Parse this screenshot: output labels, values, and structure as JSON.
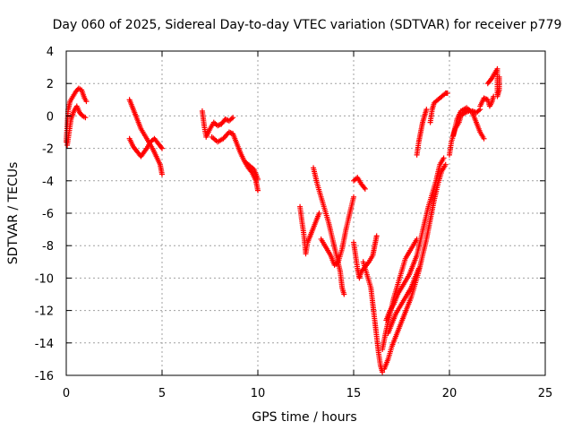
{
  "chart_data": {
    "type": "scatter",
    "title": "Day 060 of 2025, Sidereal Day-to-day VTEC variation (SDTVAR) for receiver p779",
    "xlabel": "GPS time / hours",
    "ylabel": "SDTVAR / TECUs",
    "xlim": [
      0,
      25
    ],
    "ylim": [
      -16,
      4
    ],
    "xticks": [
      0,
      5,
      10,
      15,
      20,
      25
    ],
    "yticks": [
      4,
      2,
      0,
      -2,
      -4,
      -6,
      -8,
      -10,
      -12,
      -14,
      -16
    ],
    "grid": true,
    "legend": "none",
    "marker": "plus",
    "color": "#ff0000",
    "series": [
      {
        "segments": [
          [
            [
              0.0,
              -1.6
            ],
            [
              0.1,
              0.4
            ],
            [
              0.2,
              0.9
            ],
            [
              0.35,
              1.2
            ],
            [
              0.5,
              1.5
            ],
            [
              0.65,
              1.7
            ],
            [
              0.8,
              1.6
            ],
            [
              0.95,
              1.1
            ],
            [
              1.05,
              0.9
            ]
          ],
          [
            [
              0.05,
              -1.8
            ],
            [
              0.15,
              -1.0
            ],
            [
              0.25,
              -0.2
            ],
            [
              0.4,
              0.3
            ],
            [
              0.55,
              0.6
            ],
            [
              0.7,
              0.2
            ],
            [
              0.85,
              0.0
            ],
            [
              1.0,
              -0.1
            ]
          ],
          [
            [
              3.3,
              1.0
            ],
            [
              3.5,
              0.4
            ],
            [
              3.7,
              -0.2
            ],
            [
              3.9,
              -0.8
            ],
            [
              4.1,
              -1.2
            ],
            [
              4.3,
              -1.6
            ],
            [
              4.5,
              -2.0
            ],
            [
              4.7,
              -2.5
            ],
            [
              4.9,
              -3.0
            ],
            [
              5.0,
              -3.6
            ]
          ],
          [
            [
              3.3,
              -1.4
            ],
            [
              3.5,
              -1.9
            ],
            [
              3.7,
              -2.2
            ],
            [
              3.9,
              -2.5
            ],
            [
              4.2,
              -2.0
            ],
            [
              4.4,
              -1.6
            ],
            [
              4.6,
              -1.4
            ],
            [
              4.8,
              -1.7
            ],
            [
              5.0,
              -2.0
            ]
          ],
          [
            [
              7.1,
              0.3
            ],
            [
              7.2,
              -0.6
            ],
            [
              7.3,
              -1.3
            ],
            [
              7.5,
              -0.8
            ],
            [
              7.7,
              -0.4
            ],
            [
              7.9,
              -0.6
            ],
            [
              8.1,
              -0.5
            ],
            [
              8.3,
              -0.2
            ],
            [
              8.5,
              -0.3
            ],
            [
              8.7,
              -0.1
            ]
          ],
          [
            [
              7.6,
              -1.3
            ],
            [
              7.9,
              -1.6
            ],
            [
              8.2,
              -1.4
            ],
            [
              8.5,
              -1.0
            ],
            [
              8.7,
              -1.1
            ],
            [
              8.9,
              -1.7
            ],
            [
              9.1,
              -2.3
            ],
            [
              9.3,
              -2.8
            ],
            [
              9.5,
              -3.2
            ],
            [
              9.7,
              -3.5
            ],
            [
              9.9,
              -4.0
            ],
            [
              10.0,
              -4.6
            ]
          ],
          [
            [
              9.4,
              -2.9
            ],
            [
              9.6,
              -3.1
            ],
            [
              9.8,
              -3.3
            ],
            [
              10.0,
              -3.9
            ]
          ],
          [
            [
              12.2,
              -5.6
            ],
            [
              12.3,
              -6.5
            ],
            [
              12.4,
              -7.3
            ],
            [
              12.5,
              -8.5
            ],
            [
              12.6,
              -7.8
            ],
            [
              12.8,
              -7.2
            ],
            [
              13.0,
              -6.6
            ],
            [
              13.2,
              -6.0
            ]
          ],
          [
            [
              12.9,
              -3.2
            ],
            [
              13.1,
              -4.2
            ],
            [
              13.3,
              -5.0
            ],
            [
              13.5,
              -5.8
            ],
            [
              13.7,
              -6.6
            ],
            [
              13.9,
              -7.6
            ],
            [
              14.1,
              -8.6
            ],
            [
              14.3,
              -9.6
            ],
            [
              14.4,
              -10.6
            ],
            [
              14.5,
              -11.0
            ]
          ],
          [
            [
              13.3,
              -7.6
            ],
            [
              13.5,
              -8.0
            ],
            [
              13.8,
              -8.6
            ],
            [
              14.0,
              -9.2
            ],
            [
              14.2,
              -9.0
            ],
            [
              14.4,
              -8.2
            ],
            [
              14.6,
              -7.0
            ],
            [
              14.8,
              -6.0
            ],
            [
              15.0,
              -5.0
            ]
          ],
          [
            [
              15.0,
              -4.0
            ],
            [
              15.2,
              -3.8
            ],
            [
              15.4,
              -4.2
            ],
            [
              15.6,
              -4.5
            ]
          ],
          [
            [
              15.0,
              -7.8
            ],
            [
              15.1,
              -8.6
            ],
            [
              15.2,
              -9.4
            ],
            [
              15.3,
              -10.0
            ],
            [
              15.4,
              -9.6
            ],
            [
              15.6,
              -9.3
            ],
            [
              15.8,
              -9.0
            ],
            [
              16.0,
              -8.6
            ],
            [
              16.1,
              -8.0
            ],
            [
              16.2,
              -7.4
            ]
          ],
          [
            [
              15.5,
              -9.0
            ],
            [
              15.7,
              -9.8
            ],
            [
              15.9,
              -10.6
            ],
            [
              16.0,
              -11.6
            ],
            [
              16.1,
              -12.6
            ],
            [
              16.2,
              -13.6
            ],
            [
              16.3,
              -14.6
            ],
            [
              16.4,
              -15.4
            ],
            [
              16.5,
              -15.8
            ]
          ],
          [
            [
              16.5,
              -14.4
            ],
            [
              16.7,
              -13.2
            ],
            [
              16.9,
              -12.2
            ],
            [
              17.1,
              -11.2
            ],
            [
              17.3,
              -10.4
            ],
            [
              17.5,
              -9.6
            ],
            [
              17.7,
              -8.8
            ],
            [
              17.9,
              -8.4
            ],
            [
              18.1,
              -8.0
            ],
            [
              18.3,
              -7.6
            ]
          ],
          [
            [
              16.6,
              -15.6
            ],
            [
              16.8,
              -15.0
            ],
            [
              17.0,
              -14.2
            ],
            [
              17.2,
              -13.6
            ],
            [
              17.4,
              -13.0
            ],
            [
              17.6,
              -12.4
            ],
            [
              17.8,
              -11.8
            ],
            [
              18.0,
              -11.2
            ],
            [
              18.2,
              -10.4
            ],
            [
              18.4,
              -9.6
            ],
            [
              18.6,
              -8.6
            ],
            [
              18.8,
              -7.6
            ],
            [
              19.0,
              -6.4
            ],
            [
              19.2,
              -5.2
            ],
            [
              19.4,
              -4.2
            ],
            [
              19.6,
              -3.4
            ],
            [
              19.8,
              -3.0
            ]
          ],
          [
            [
              16.7,
              -12.6
            ],
            [
              16.9,
              -12.0
            ],
            [
              17.1,
              -11.6
            ],
            [
              17.3,
              -11.0
            ],
            [
              17.5,
              -10.6
            ],
            [
              17.7,
              -10.2
            ],
            [
              17.9,
              -9.8
            ],
            [
              18.1,
              -9.2
            ],
            [
              18.3,
              -8.6
            ],
            [
              18.5,
              -7.6
            ],
            [
              18.7,
              -6.6
            ],
            [
              18.9,
              -5.6
            ],
            [
              19.1,
              -4.8
            ],
            [
              19.3,
              -4.0
            ],
            [
              19.5,
              -3.0
            ],
            [
              19.7,
              -2.6
            ]
          ],
          [
            [
              16.8,
              -13.4
            ],
            [
              17.0,
              -12.8
            ],
            [
              17.2,
              -12.2
            ],
            [
              17.4,
              -11.8
            ],
            [
              17.6,
              -11.4
            ],
            [
              17.8,
              -11.0
            ],
            [
              18.0,
              -10.6
            ],
            [
              18.2,
              -10.0
            ],
            [
              18.4,
              -9.4
            ]
          ],
          [
            [
              18.3,
              -2.4
            ],
            [
              18.4,
              -1.6
            ],
            [
              18.5,
              -1.0
            ],
            [
              18.6,
              -0.4
            ],
            [
              18.7,
              0.0
            ],
            [
              18.8,
              0.4
            ]
          ],
          [
            [
              19.0,
              -0.4
            ],
            [
              19.1,
              0.4
            ],
            [
              19.2,
              0.8
            ],
            [
              19.4,
              1.0
            ],
            [
              19.6,
              1.2
            ],
            [
              19.8,
              1.4
            ],
            [
              19.9,
              1.4
            ]
          ],
          [
            [
              20.0,
              -2.4
            ],
            [
              20.1,
              -1.6
            ],
            [
              20.3,
              -0.8
            ],
            [
              20.5,
              -0.4
            ],
            [
              20.6,
              0.0
            ],
            [
              20.8,
              0.2
            ],
            [
              21.0,
              0.3
            ],
            [
              21.2,
              0.3
            ],
            [
              21.4,
              0.2
            ],
            [
              21.6,
              0.4
            ]
          ],
          [
            [
              20.2,
              -1.2
            ],
            [
              20.4,
              -0.2
            ],
            [
              20.6,
              0.3
            ],
            [
              20.9,
              0.5
            ],
            [
              21.2,
              0.2
            ],
            [
              21.4,
              -0.4
            ],
            [
              21.6,
              -1.0
            ],
            [
              21.8,
              -1.4
            ]
          ],
          [
            [
              21.6,
              0.6
            ],
            [
              21.8,
              1.1
            ],
            [
              22.0,
              1.0
            ],
            [
              22.1,
              0.6
            ],
            [
              22.2,
              0.8
            ],
            [
              22.3,
              1.2
            ]
          ],
          [
            [
              22.0,
              2.0
            ],
            [
              22.2,
              2.3
            ],
            [
              22.4,
              2.7
            ],
            [
              22.5,
              2.9
            ],
            [
              22.5,
              1.2
            ],
            [
              22.6,
              1.6
            ],
            [
              22.6,
              2.4
            ]
          ]
        ]
      }
    ]
  }
}
